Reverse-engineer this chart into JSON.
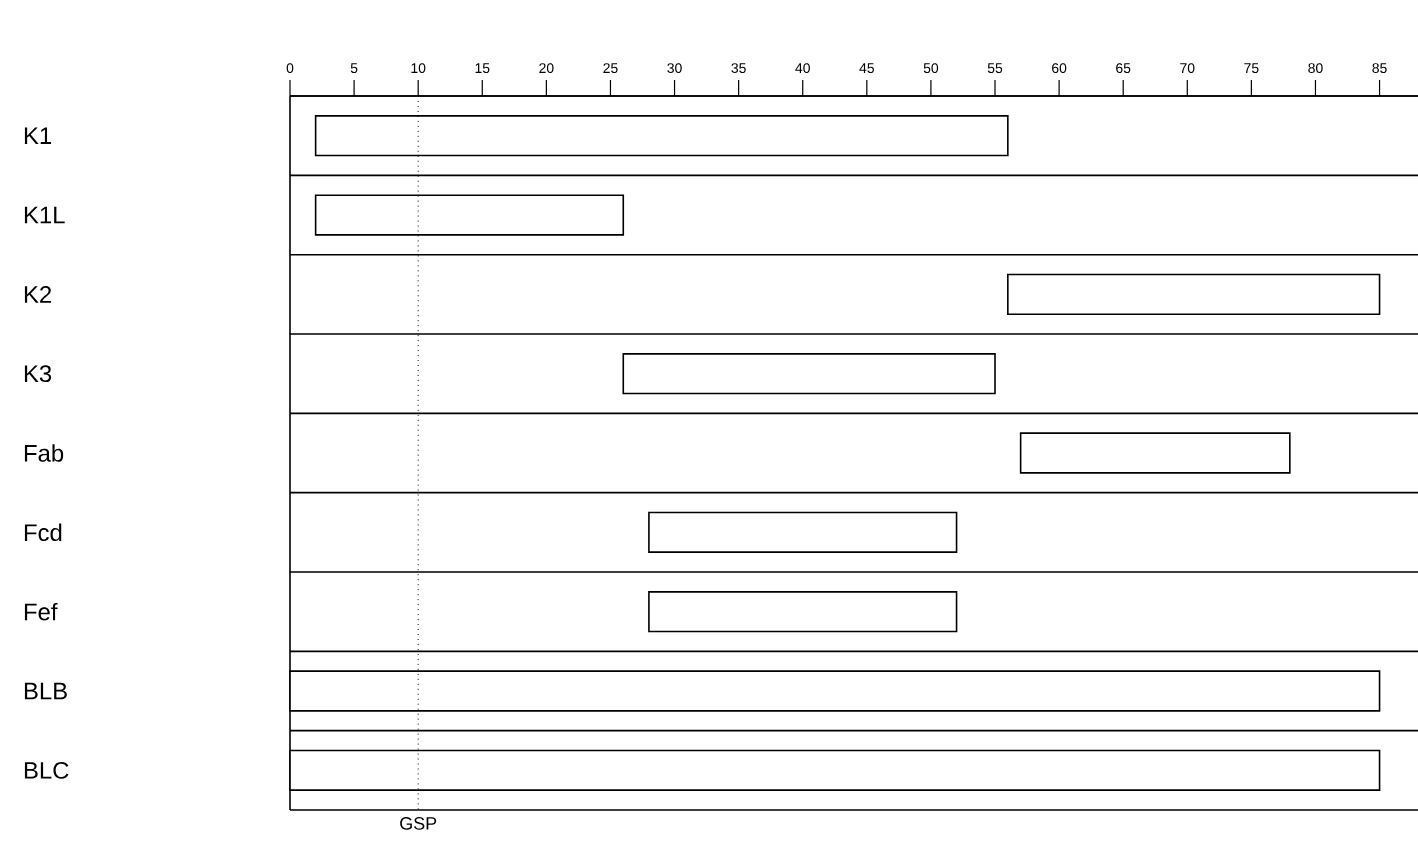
{
  "chart_data": {
    "type": "bar",
    "orientation": "horizontal",
    "categories": [
      "K1",
      "K1L",
      "K2",
      "K3",
      "Fab",
      "Fcd",
      "Fef",
      "BLB",
      "BLC"
    ],
    "base": [
      2,
      2,
      56,
      26,
      57,
      28,
      28,
      0,
      0
    ],
    "values": [
      54,
      24,
      29,
      29,
      21,
      24,
      24,
      85,
      85
    ],
    "color": "#ffffff",
    "xlim": [
      0,
      88
    ],
    "xticks": [
      0,
      5,
      10,
      15,
      20,
      25,
      30,
      35,
      40,
      45,
      50,
      55,
      60,
      65,
      70,
      75,
      80,
      85
    ],
    "grid": "y",
    "ref_lines": [
      {
        "axis": "x",
        "value": 10,
        "label": "GSP",
        "line_style": "dotted"
      }
    ]
  }
}
